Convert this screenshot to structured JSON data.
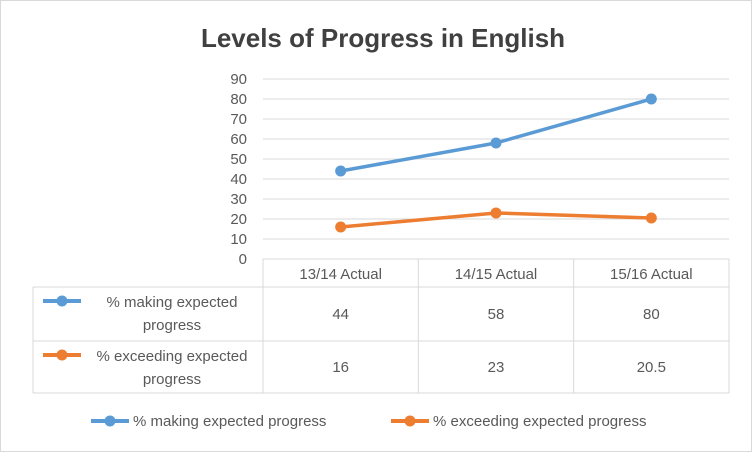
{
  "chart_data": {
    "type": "line",
    "title": "Levels of Progress in English",
    "categories": [
      "13/14 Actual",
      "14/15 Actual",
      "15/16 Actual"
    ],
    "y_ticks": [
      "0",
      "10",
      "20",
      "30",
      "40",
      "50",
      "60",
      "70",
      "80",
      "90"
    ],
    "ylim": [
      0,
      90
    ],
    "grid": true,
    "legend_position": "bottom",
    "data_table": true,
    "series": [
      {
        "name": "% making expected progress",
        "table_label_lines": [
          "% making expected",
          "progress"
        ],
        "values": [
          44,
          58,
          80
        ],
        "value_labels": [
          "44",
          "58",
          "80"
        ],
        "color": "#5b9bd5"
      },
      {
        "name": "% exceeding expected progress",
        "table_label_lines": [
          "% exceeding expected",
          "progress"
        ],
        "values": [
          16,
          23,
          20.5
        ],
        "value_labels": [
          "16",
          "23",
          "20.5"
        ],
        "color": "#ed7d31"
      }
    ]
  }
}
